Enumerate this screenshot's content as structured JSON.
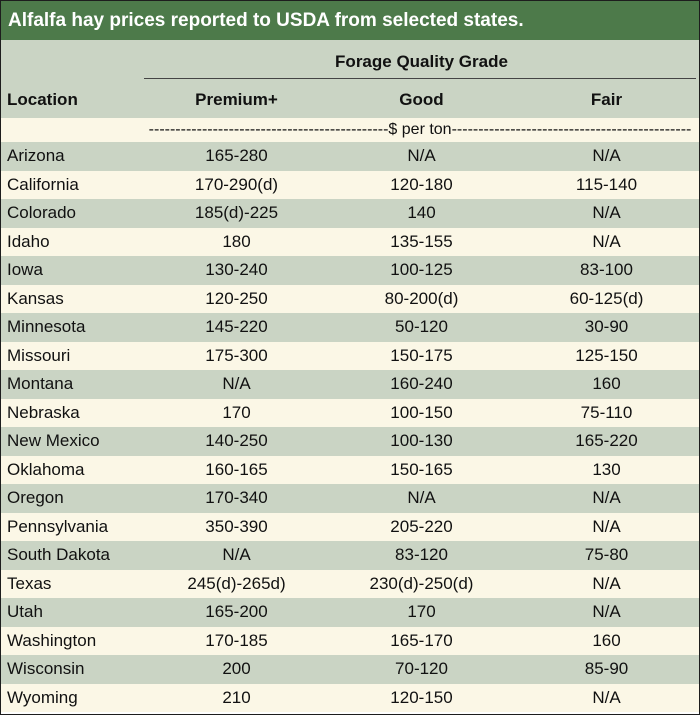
{
  "title": "Alfalfa hay prices reported to USDA from selected states.",
  "header": {
    "group_label": "Forage Quality Grade",
    "location_label": "Location",
    "columns": [
      "Premium+",
      "Good",
      "Fair"
    ]
  },
  "unit_row": "---------------------------------------------$ per ton---------------------------------------------",
  "rows": [
    {
      "location": "Arizona",
      "premium": "165-280",
      "good": "N/A",
      "fair": "N/A"
    },
    {
      "location": "California",
      "premium": "170-290(d)",
      "good": "120-180",
      "fair": "115-140"
    },
    {
      "location": "Colorado",
      "premium": "185(d)-225",
      "good": "140",
      "fair": "N/A"
    },
    {
      "location": "Idaho",
      "premium": "180",
      "good": "135-155",
      "fair": "N/A"
    },
    {
      "location": "Iowa",
      "premium": "130-240",
      "good": "100-125",
      "fair": "83-100"
    },
    {
      "location": "Kansas",
      "premium": "120-250",
      "good": "80-200(d)",
      "fair": "60-125(d)"
    },
    {
      "location": "Minnesota",
      "premium": "145-220",
      "good": "50-120",
      "fair": "30-90"
    },
    {
      "location": "Missouri",
      "premium": "175-300",
      "good": "150-175",
      "fair": "125-150"
    },
    {
      "location": "Montana",
      "premium": "N/A",
      "good": "160-240",
      "fair": "160"
    },
    {
      "location": "Nebraska",
      "premium": "170",
      "good": "100-150",
      "fair": "75-110"
    },
    {
      "location": "New Mexico",
      "premium": "140-250",
      "good": "100-130",
      "fair": "165-220"
    },
    {
      "location": "Oklahoma",
      "premium": "160-165",
      "good": "150-165",
      "fair": "130"
    },
    {
      "location": "Oregon",
      "premium": "170-340",
      "good": "N/A",
      "fair": "N/A"
    },
    {
      "location": "Pennsylvania",
      "premium": "350-390",
      "good": "205-220",
      "fair": "N/A"
    },
    {
      "location": "South Dakota",
      "premium": "N/A",
      "good": "83-120",
      "fair": "75-80"
    },
    {
      "location": "Texas",
      "premium": "245(d)-265d)",
      "good": "230(d)-250(d)",
      "fair": "N/A"
    },
    {
      "location": "Utah",
      "premium": "165-200",
      "good": "170",
      "fair": "N/A"
    },
    {
      "location": "Washington",
      "premium": "170-185",
      "good": "165-170",
      "fair": "160"
    },
    {
      "location": "Wisconsin",
      "premium": "200",
      "good": "70-120",
      "fair": "85-90"
    },
    {
      "location": "Wyoming",
      "premium": "210",
      "good": "120-150",
      "fair": "N/A"
    }
  ],
  "colors": {
    "title_bg": "#4d7a4a",
    "header_bg": "#cad4c4",
    "band_green": "#cad4c4",
    "band_cream": "#fbf7e6"
  }
}
